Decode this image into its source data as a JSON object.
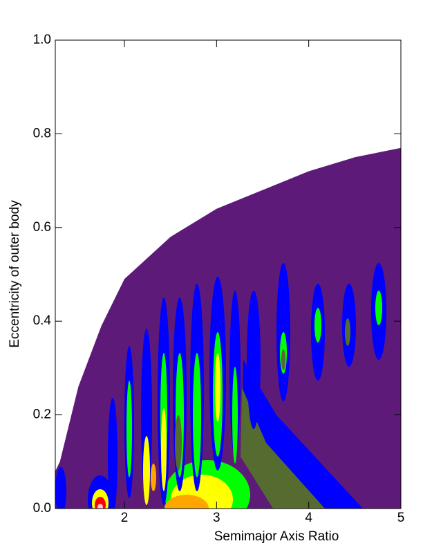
{
  "chart_data": {
    "type": "contour",
    "x_label": "Semimajor Axis Ratio",
    "y_label": "Eccentricity of outer body",
    "xlim": [
      1.25,
      5
    ],
    "ylim": [
      0,
      1
    ],
    "xticks": [
      2,
      3,
      4,
      5
    ],
    "yticks": [
      {
        "value": 0,
        "label": "0.0"
      },
      0.2,
      0.4,
      0.6,
      0.8,
      {
        "value": 1,
        "label": "1.0"
      }
    ],
    "color": "#5e1a78",
    "boundary": {
      "x": [
        1.25,
        1.3,
        1.5,
        1.75,
        2,
        2.5,
        3,
        3.5,
        4,
        4.5,
        5
      ],
      "y": [
        0.08,
        0.1,
        0.26,
        0.39,
        0.49,
        0.58,
        0.64,
        0.68,
        0.72,
        0.75,
        0.77
      ]
    }
  }
}
